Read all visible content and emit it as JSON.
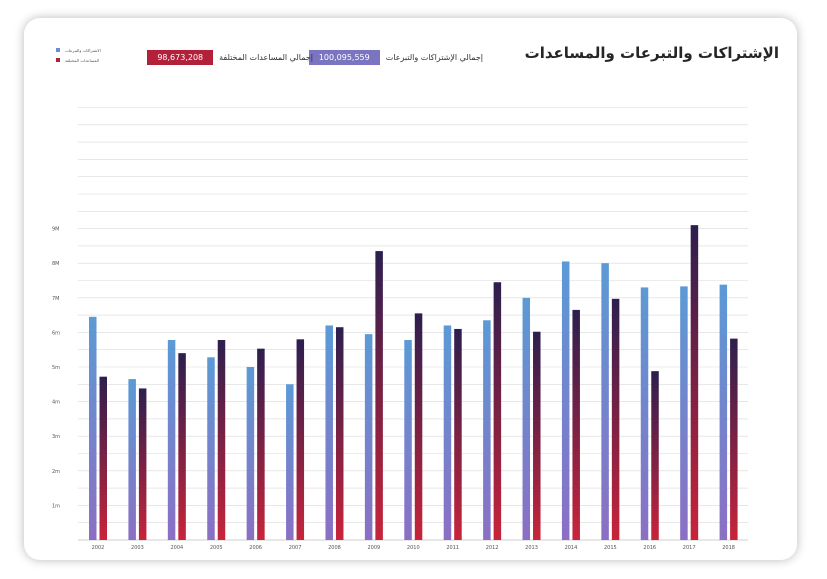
{
  "title": "الإشتراكات والتبرعات والمساعدات",
  "totals": [
    {
      "label": "إجمالي الإشتراكات والتبرعات",
      "value": "100,095,559",
      "color": "#7b74c0"
    },
    {
      "label": "إجمالي المساعدات المختلفة",
      "value": "98,673,208",
      "color": "#b2203a"
    }
  ],
  "legend": [
    {
      "label": "الاشتراكات والتبرعات",
      "color": "#6a8cd6"
    },
    {
      "label": "المساعدات المختلفة",
      "color": "#b2203a"
    }
  ],
  "colors": {
    "series1_top": "#5b9ad6",
    "series1_bottom": "#8b6fc4",
    "series2_top": "#2c1f4f",
    "series2_bottom": "#c8243a",
    "grid": "#d9d9d9"
  },
  "chart_data": {
    "type": "bar",
    "categories": [
      "2002",
      "2003",
      "2004",
      "2005",
      "2006",
      "2007",
      "2008",
      "2009",
      "2010",
      "2011",
      "2012",
      "2013",
      "2014",
      "2015",
      "2016",
      "2017",
      "2018"
    ],
    "series": [
      {
        "name": "الاشتراكات والتبرعات",
        "values": [
          6.45,
          4.65,
          5.78,
          5.28,
          5.0,
          4.5,
          6.2,
          5.95,
          5.78,
          6.2,
          6.35,
          7.0,
          8.05,
          8.0,
          7.3,
          7.33,
          7.38
        ]
      },
      {
        "name": "المساعدات المختلفة",
        "values": [
          4.72,
          4.38,
          5.4,
          5.78,
          5.53,
          5.8,
          6.15,
          8.35,
          6.55,
          6.1,
          7.45,
          6.02,
          6.65,
          6.97,
          4.88,
          9.1,
          5.82
        ]
      }
    ],
    "yticks": [
      "1m",
      "2m",
      "3m",
      "4m",
      "5m",
      "6m",
      "7M",
      "8M",
      "9M"
    ],
    "ylim": [
      0,
      12.6
    ],
    "grid": true,
    "legend_position": "top-left"
  }
}
